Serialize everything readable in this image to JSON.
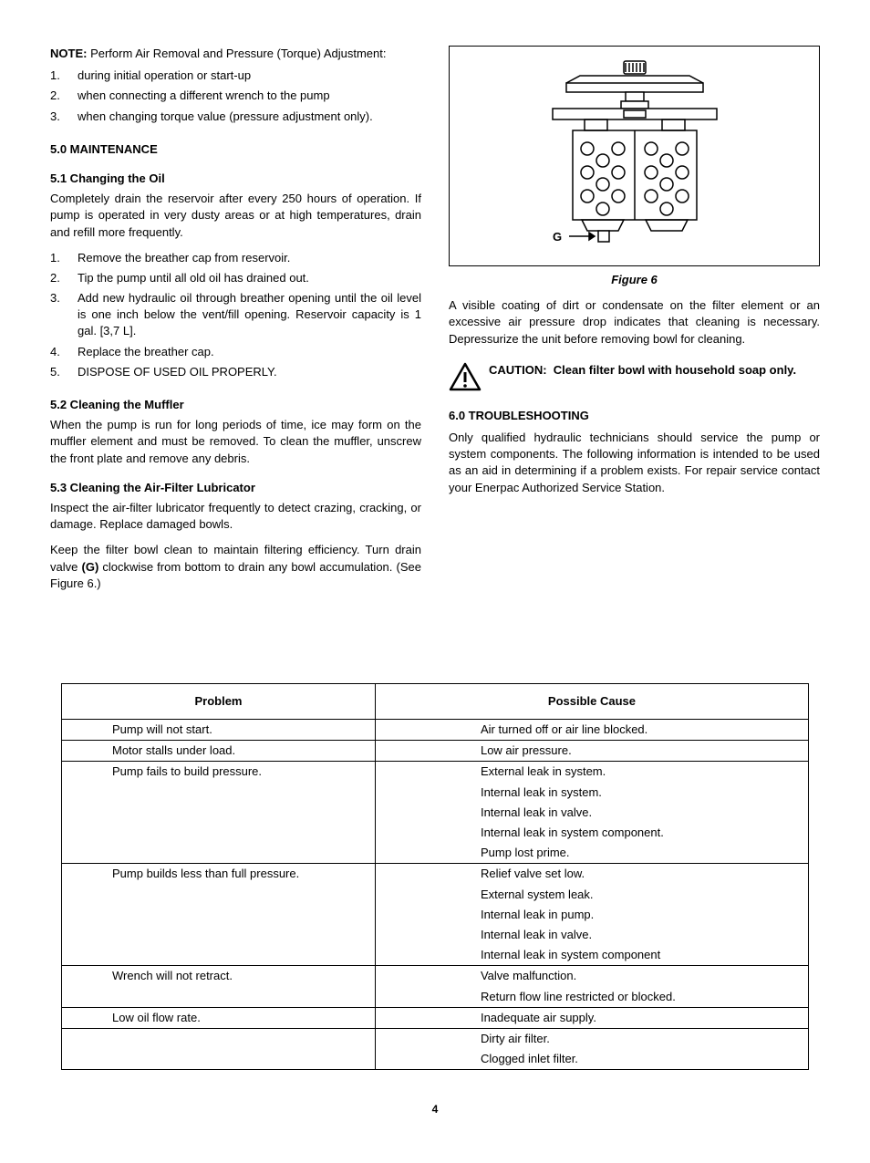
{
  "note": {
    "label": "NOTE:",
    "text": "Perform Air Removal and Pressure (Torque) Adjustment:",
    "items": [
      "during initial operation or start-up",
      "when connecting a different wrench to the pump",
      "when changing torque value (pressure adjustment only)."
    ]
  },
  "sec5": {
    "heading": "5.0  MAINTENANCE",
    "s51": {
      "heading": "5.1  Changing the Oil",
      "p1": "Completely drain the reservoir after every 250 hours of operation. If pump is operated in very dusty areas or at high temperatures, drain and refill more frequently.",
      "items": [
        "Remove the breather cap from reservoir.",
        "Tip the pump until all old oil has drained out.",
        "Add new hydraulic oil through breather opening until the oil level is one inch below the vent/fill opening. Reservoir capacity is 1 gal. [3,7 L].",
        "Replace the breather cap.",
        "DISPOSE OF USED OIL PROPERLY."
      ]
    },
    "s52": {
      "heading": "5.2  Cleaning the Muffler",
      "p1": "When the pump is run for long periods of time, ice may form on the muffler element and must be removed.  To clean the muffler, unscrew the front plate and remove any debris."
    },
    "s53": {
      "heading": "5.3  Cleaning the Air-Filter Lubricator",
      "p1": "Inspect the air-filter lubricator frequently to detect crazing, cracking, or damage.  Replace damaged bowls.",
      "p2a": "Keep the filter bowl clean to maintain filtering efficiency.  Turn drain valve ",
      "p2b": "(G)",
      "p2c": " clockwise from bottom to drain any bowl accumulation. (See Figure 6.)"
    }
  },
  "figure6": {
    "caption": "Figure 6",
    "label_g": "G",
    "p1": "A visible coating of dirt or condensate on the filter element or an excessive air pressure drop indicates that cleaning is necessary. Depressurize the unit before removing bowl for cleaning."
  },
  "caution": {
    "label": "CAUTION:",
    "text": "Clean filter bowl with household soap only."
  },
  "sec6": {
    "heading": "6.0  TROUBLESHOOTING",
    "p1": "Only qualified hydraulic technicians should service the pump or system components.  The following information is intended to be used as an aid in determining if a problem exists. For repair service contact your Enerpac Authorized Service Station."
  },
  "table": {
    "col1": "Problem",
    "col2": "Possible Cause",
    "rows": [
      {
        "sep": true,
        "p": "Pump will not start.",
        "c": "Air turned off or air line blocked."
      },
      {
        "sep": true,
        "p": "Motor stalls under load.",
        "c": "Low air pressure."
      },
      {
        "sep": true,
        "p": "Pump fails to build pressure.",
        "c": "External leak in system."
      },
      {
        "sep": false,
        "p": "",
        "c": "Internal leak in system."
      },
      {
        "sep": false,
        "p": "",
        "c": "Internal leak in valve."
      },
      {
        "sep": false,
        "p": "",
        "c": "Internal leak in system component."
      },
      {
        "sep": false,
        "p": "",
        "c": "Pump lost prime."
      },
      {
        "sep": true,
        "p": "Pump builds less than full pressure.",
        "c": "Relief valve set low."
      },
      {
        "sep": false,
        "p": "",
        "c": "External system leak."
      },
      {
        "sep": false,
        "p": "",
        "c": "Internal leak in pump."
      },
      {
        "sep": false,
        "p": "",
        "c": "Internal leak in valve."
      },
      {
        "sep": false,
        "p": "",
        "c": "Internal leak in system component"
      },
      {
        "sep": true,
        "p": "Wrench will not retract.",
        "c": "Valve malfunction."
      },
      {
        "sep": false,
        "p": "",
        "c": "Return flow line restricted or blocked."
      },
      {
        "sep": true,
        "p": "Low oil flow rate.",
        "c": "Inadequate air supply."
      },
      {
        "sep": true,
        "p": "",
        "c": "Dirty air filter."
      },
      {
        "sep": false,
        "p": "",
        "c": "Clogged inlet filter.",
        "last": true
      }
    ]
  },
  "page_number": "4"
}
